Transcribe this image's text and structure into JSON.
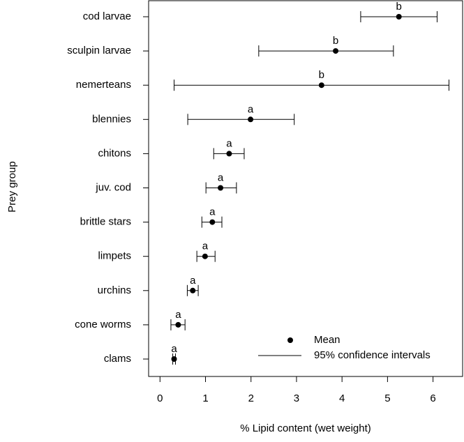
{
  "chart_data": {
    "type": "dot_ci",
    "categories": [
      "cod larvae",
      "sculpin larvae",
      "nemerteans",
      "blennies",
      "chitons",
      "juv. cod",
      "brittle stars",
      "limpets",
      "urchins",
      "cone worms",
      "clams"
    ],
    "series": [
      {
        "name": "Mean",
        "color": "#000000",
        "values": [
          5.25,
          3.86,
          3.55,
          1.99,
          1.52,
          1.33,
          1.15,
          0.99,
          0.72,
          0.4,
          0.31
        ],
        "lower": [
          4.41,
          2.17,
          0.31,
          0.61,
          1.18,
          1.01,
          0.92,
          0.81,
          0.6,
          0.24,
          0.28
        ],
        "upper": [
          6.09,
          5.13,
          6.35,
          2.95,
          1.85,
          1.68,
          1.36,
          1.21,
          0.84,
          0.55,
          0.34
        ],
        "letters": [
          "b",
          "b",
          "b",
          "a",
          "a",
          "a",
          "a",
          "a",
          "a",
          "a",
          "a"
        ]
      }
    ],
    "ci_legend": "95% confidence intervals",
    "xlabel": "% Lipid content (wet weight)",
    "ylabel": "Prey group",
    "xlim": [
      -0.25,
      6.65
    ],
    "xticks": [
      0,
      1,
      2,
      3,
      4,
      5,
      6
    ],
    "legend": "bottom-right"
  }
}
